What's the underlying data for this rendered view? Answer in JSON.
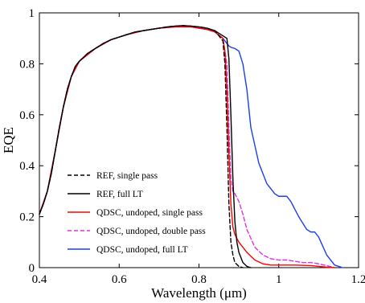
{
  "chart_data": {
    "type": "line",
    "xlabel": "Wavelength (μm)",
    "ylabel": "EQE",
    "xlim": [
      0.4,
      1.2
    ],
    "ylim": [
      0,
      1
    ],
    "xticks": [
      "0.4",
      "0.6",
      "0.8",
      "1",
      "1.2"
    ],
    "yticks": [
      "0",
      "0.2",
      "0.4",
      "0.6",
      "0.8",
      "1"
    ],
    "grid": false,
    "legend_position": "bottom-left",
    "series": [
      {
        "name": "REF, single pass",
        "color": "#000000",
        "dash": "dashed",
        "x": [
          0.4,
          0.41,
          0.42,
          0.43,
          0.44,
          0.45,
          0.46,
          0.47,
          0.48,
          0.49,
          0.5,
          0.52,
          0.54,
          0.56,
          0.58,
          0.6,
          0.62,
          0.64,
          0.66,
          0.68,
          0.7,
          0.72,
          0.74,
          0.76,
          0.78,
          0.8,
          0.82,
          0.84,
          0.86,
          0.865,
          0.87,
          0.875,
          0.88,
          0.885,
          0.89,
          0.9,
          0.91
        ],
        "y": [
          0.21,
          0.25,
          0.3,
          0.37,
          0.46,
          0.55,
          0.63,
          0.7,
          0.75,
          0.79,
          0.81,
          0.84,
          0.86,
          0.88,
          0.895,
          0.905,
          0.915,
          0.925,
          0.93,
          0.935,
          0.94,
          0.945,
          0.948,
          0.95,
          0.948,
          0.945,
          0.94,
          0.93,
          0.89,
          0.8,
          0.55,
          0.25,
          0.1,
          0.05,
          0.02,
          0.005,
          0.0
        ]
      },
      {
        "name": "REF, full LT",
        "color": "#000000",
        "dash": "solid",
        "x": [
          0.4,
          0.41,
          0.42,
          0.43,
          0.44,
          0.45,
          0.46,
          0.47,
          0.48,
          0.49,
          0.5,
          0.52,
          0.54,
          0.56,
          0.58,
          0.6,
          0.62,
          0.64,
          0.66,
          0.68,
          0.7,
          0.72,
          0.74,
          0.76,
          0.78,
          0.8,
          0.82,
          0.84,
          0.86,
          0.87,
          0.875,
          0.88,
          0.885,
          0.89,
          0.895,
          0.9,
          0.91,
          0.92,
          0.93
        ],
        "y": [
          0.21,
          0.25,
          0.3,
          0.37,
          0.46,
          0.55,
          0.63,
          0.7,
          0.75,
          0.79,
          0.81,
          0.84,
          0.86,
          0.88,
          0.895,
          0.905,
          0.915,
          0.925,
          0.93,
          0.935,
          0.94,
          0.945,
          0.948,
          0.95,
          0.948,
          0.945,
          0.94,
          0.93,
          0.91,
          0.9,
          0.82,
          0.6,
          0.35,
          0.18,
          0.1,
          0.06,
          0.02,
          0.005,
          0.0
        ]
      },
      {
        "name": "QDSC, undoped, single pass",
        "color": "#ff0000",
        "dash": "solid",
        "x": [
          0.4,
          0.42,
          0.44,
          0.46,
          0.48,
          0.5,
          0.54,
          0.58,
          0.62,
          0.66,
          0.7,
          0.74,
          0.78,
          0.8,
          0.82,
          0.84,
          0.86,
          0.865,
          0.87,
          0.875,
          0.88,
          0.885,
          0.89,
          0.9,
          0.92,
          0.94,
          0.96,
          0.98,
          1.0,
          1.04,
          1.08,
          1.1,
          1.12,
          1.14
        ],
        "y": [
          0.21,
          0.3,
          0.46,
          0.63,
          0.75,
          0.81,
          0.86,
          0.895,
          0.915,
          0.93,
          0.94,
          0.945,
          0.945,
          0.94,
          0.935,
          0.925,
          0.9,
          0.85,
          0.7,
          0.45,
          0.25,
          0.16,
          0.13,
          0.1,
          0.06,
          0.03,
          0.015,
          0.01,
          0.01,
          0.01,
          0.008,
          0.005,
          0.002,
          0.0
        ]
      },
      {
        "name": "QDSC, undoped, double pass",
        "color": "#e030e0",
        "dash": "dashed",
        "x": [
          0.4,
          0.42,
          0.44,
          0.46,
          0.48,
          0.5,
          0.54,
          0.58,
          0.62,
          0.66,
          0.7,
          0.74,
          0.78,
          0.8,
          0.82,
          0.84,
          0.86,
          0.87,
          0.875,
          0.88,
          0.885,
          0.89,
          0.9,
          0.91,
          0.92,
          0.94,
          0.96,
          0.98,
          1.0,
          1.02,
          1.04,
          1.06,
          1.08,
          1.1,
          1.12,
          1.14
        ],
        "y": [
          0.21,
          0.3,
          0.46,
          0.63,
          0.75,
          0.81,
          0.86,
          0.895,
          0.915,
          0.93,
          0.94,
          0.945,
          0.945,
          0.94,
          0.935,
          0.925,
          0.9,
          0.8,
          0.55,
          0.35,
          0.3,
          0.29,
          0.26,
          0.21,
          0.15,
          0.08,
          0.05,
          0.035,
          0.03,
          0.03,
          0.025,
          0.02,
          0.02,
          0.015,
          0.008,
          0.0
        ]
      },
      {
        "name": "QDSC, undoped, full LT",
        "color": "#1a3ef0",
        "dash": "solid",
        "x": [
          0.4,
          0.42,
          0.44,
          0.46,
          0.48,
          0.5,
          0.54,
          0.58,
          0.62,
          0.66,
          0.7,
          0.74,
          0.78,
          0.8,
          0.82,
          0.84,
          0.86,
          0.87,
          0.875,
          0.88,
          0.89,
          0.9,
          0.91,
          0.92,
          0.93,
          0.95,
          0.97,
          0.99,
          1.0,
          1.02,
          1.03,
          1.05,
          1.07,
          1.08,
          1.09,
          1.1,
          1.12,
          1.14,
          1.16
        ],
        "y": [
          0.21,
          0.3,
          0.46,
          0.63,
          0.75,
          0.81,
          0.86,
          0.895,
          0.915,
          0.93,
          0.94,
          0.945,
          0.945,
          0.94,
          0.935,
          0.925,
          0.9,
          0.88,
          0.87,
          0.865,
          0.86,
          0.85,
          0.8,
          0.7,
          0.55,
          0.41,
          0.33,
          0.29,
          0.28,
          0.28,
          0.26,
          0.2,
          0.15,
          0.14,
          0.14,
          0.12,
          0.05,
          0.01,
          0.0
        ]
      }
    ]
  }
}
